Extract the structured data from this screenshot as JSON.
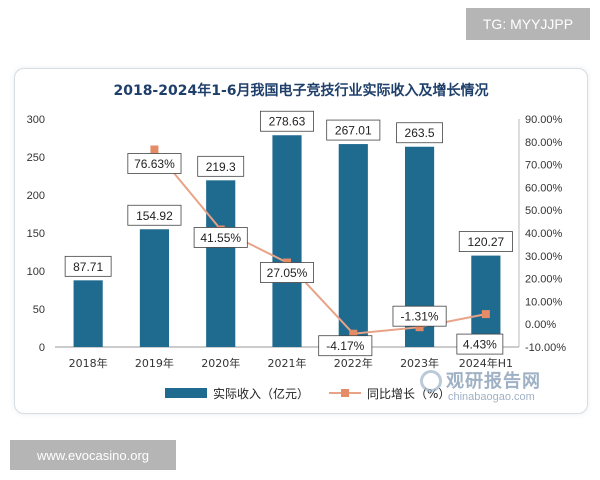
{
  "badges": {
    "telegram": "TG: MYYJJPP",
    "site": "www.evocasino.org"
  },
  "watermark": {
    "name": "观研报告网",
    "domain": "chinabaogao.com"
  },
  "colors": {
    "bar": "#1f6a8f",
    "line": "#e8a286",
    "marker": "#e58c66"
  },
  "chart_data": {
    "type": "bar",
    "title": "2018-2024年1-6月我国电子竞技行业实际收入及增长情况",
    "categories": [
      "2018年",
      "2019年",
      "2020年",
      "2021年",
      "2022年",
      "2023年",
      "2024年H1"
    ],
    "series": [
      {
        "name": "实际收入（亿元）",
        "type": "bar",
        "axis": "left",
        "values": [
          87.71,
          154.92,
          219.3,
          278.63,
          267.01,
          263.5,
          120.27
        ],
        "labels": [
          "87.71",
          "154.92",
          "219.3",
          "278.63",
          "267.01",
          "263.5",
          "120.27"
        ]
      },
      {
        "name": "同比增长（%）",
        "type": "line",
        "axis": "right",
        "values": [
          null,
          76.63,
          41.55,
          27.05,
          -4.17,
          -1.31,
          4.43
        ],
        "labels": [
          "",
          "76.63%",
          "41.55%",
          "27.05%",
          "-4.17%",
          "-1.31%",
          "4.43%"
        ]
      }
    ],
    "y_left": {
      "min": 0,
      "max": 300,
      "ticks": [
        "0",
        "50",
        "100",
        "150",
        "200",
        "250",
        "300"
      ]
    },
    "y_right": {
      "min": -10,
      "max": 90,
      "ticks": [
        "-10.00%",
        "0.00%",
        "10.00%",
        "20.00%",
        "30.00%",
        "40.00%",
        "50.00%",
        "60.00%",
        "70.00%",
        "80.00%",
        "90.00%"
      ]
    },
    "grid": false,
    "legend_position": "bottom"
  }
}
